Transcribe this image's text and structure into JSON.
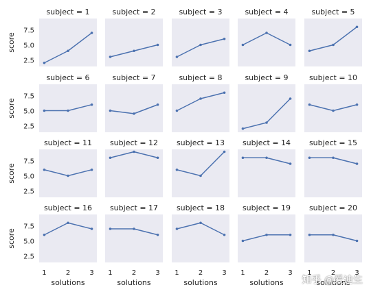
{
  "chart_data": {
    "type": "line",
    "grid_layout": {
      "rows": 4,
      "cols": 5,
      "sharex": true,
      "sharey": true
    },
    "xlabel": "solutions",
    "ylabel": "score",
    "x": [
      1,
      2,
      3
    ],
    "xticks": [
      "1",
      "2",
      "3"
    ],
    "yticks": [
      "2.5",
      "5.0",
      "7.5"
    ],
    "xlim": [
      0.9,
      3.1
    ],
    "ylim": [
      1.4,
      9.4
    ],
    "colors": {
      "line": "#4c72b0",
      "panel_bg": "#eaeaf2",
      "text": "#222222"
    },
    "facets": [
      {
        "title": "subject = 1",
        "values": [
          2,
          4,
          7
        ]
      },
      {
        "title": "subject = 2",
        "values": [
          3,
          4,
          5
        ]
      },
      {
        "title": "subject = 3",
        "values": [
          3,
          5,
          6
        ]
      },
      {
        "title": "subject = 4",
        "values": [
          5,
          7,
          5
        ]
      },
      {
        "title": "subject = 5",
        "values": [
          4,
          5,
          8
        ]
      },
      {
        "title": "subject = 6",
        "values": [
          5,
          5,
          6
        ]
      },
      {
        "title": "subject = 7",
        "values": [
          5,
          4.5,
          6
        ]
      },
      {
        "title": "subject = 8",
        "values": [
          5,
          7,
          8
        ]
      },
      {
        "title": "subject = 9",
        "values": [
          2,
          3,
          7
        ]
      },
      {
        "title": "subject = 10",
        "values": [
          6,
          5,
          6
        ]
      },
      {
        "title": "subject = 11",
        "values": [
          6,
          5,
          6
        ]
      },
      {
        "title": "subject = 12",
        "values": [
          8,
          9,
          8
        ]
      },
      {
        "title": "subject = 13",
        "values": [
          6,
          5,
          9
        ]
      },
      {
        "title": "subject = 14",
        "values": [
          8,
          8,
          7
        ]
      },
      {
        "title": "subject = 15",
        "values": [
          8,
          8,
          7
        ]
      },
      {
        "title": "subject = 16",
        "values": [
          6,
          8,
          7
        ]
      },
      {
        "title": "subject = 17",
        "values": [
          7,
          7,
          6
        ]
      },
      {
        "title": "subject = 18",
        "values": [
          7,
          8,
          6
        ]
      },
      {
        "title": "subject = 19",
        "values": [
          5,
          6,
          6
        ]
      },
      {
        "title": "subject = 20",
        "values": [
          6,
          6,
          5
        ]
      }
    ]
  },
  "watermark": "知乎 @爱迪生"
}
